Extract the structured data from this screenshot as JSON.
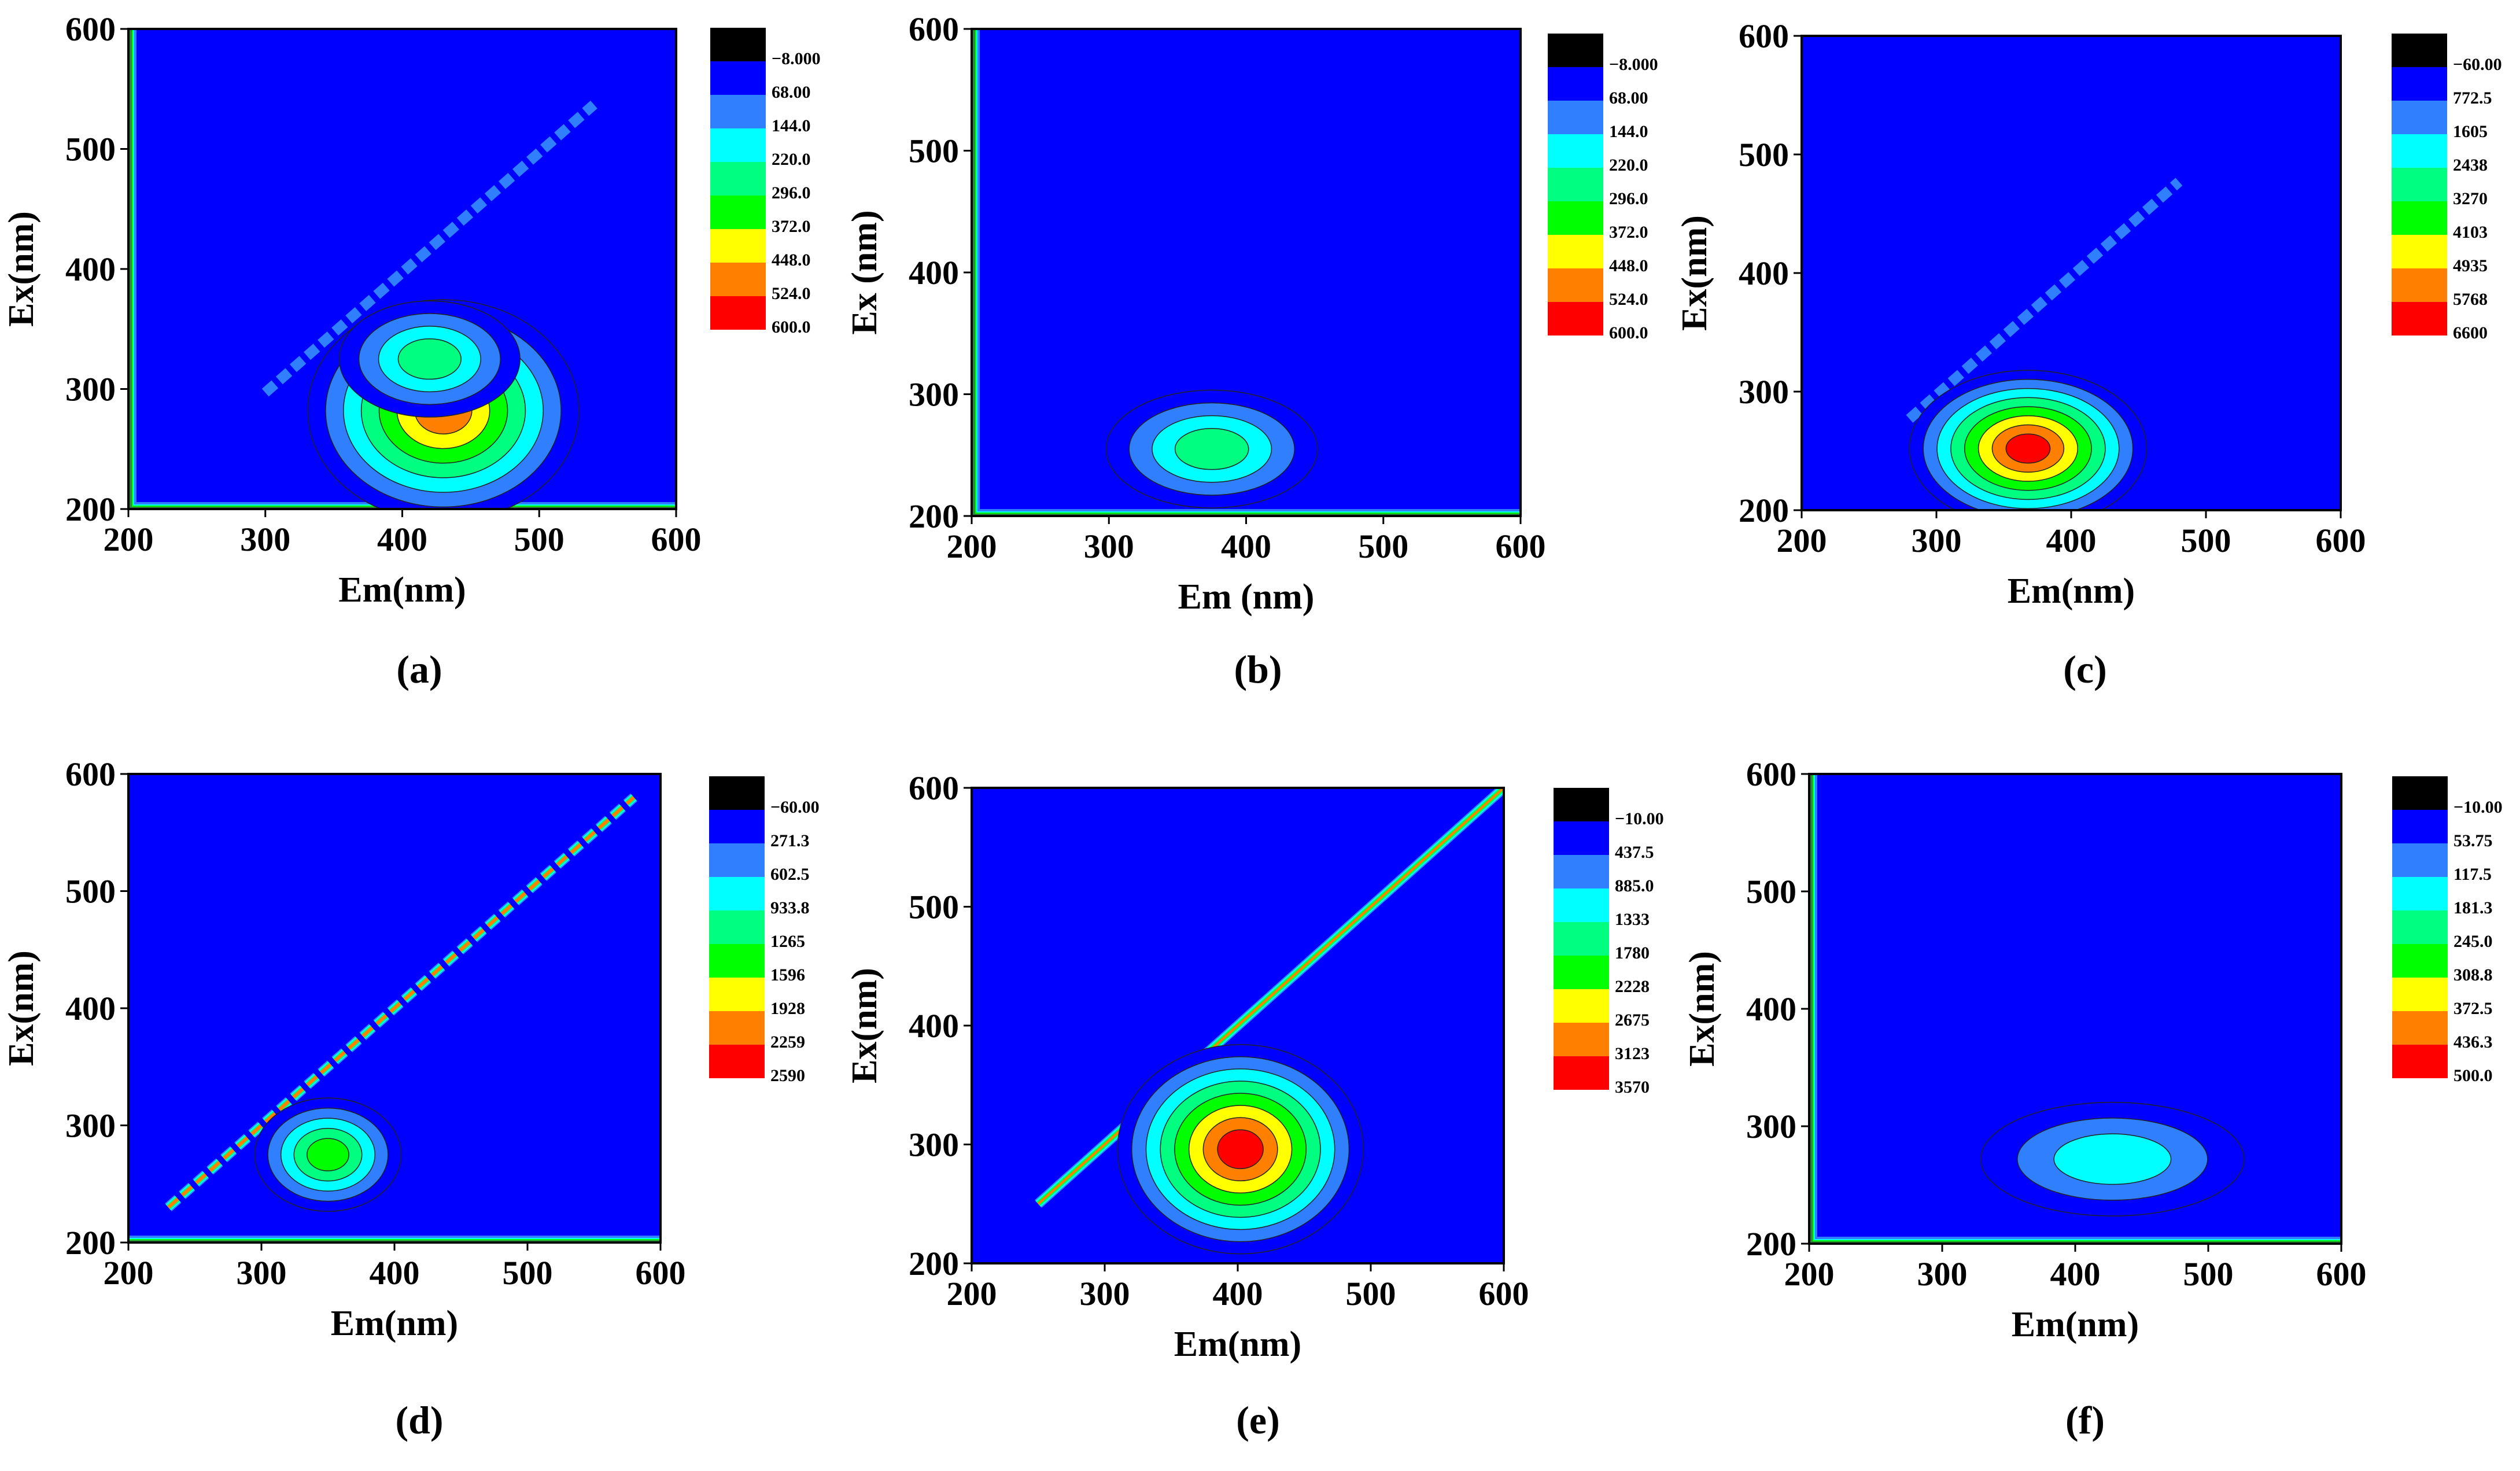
{
  "chart_data": [
    {
      "panel": "(a)",
      "type": "heatmap",
      "xlabel": "Em(nm)",
      "ylabel": "Ex(nm)",
      "xlim": [
        200,
        600
      ],
      "ylim": [
        200,
        600
      ],
      "xticks": [
        "200",
        "300",
        "400",
        "500",
        "600"
      ],
      "yticks": [
        "200",
        "300",
        "400",
        "500",
        "600"
      ],
      "legend_levels": [
        "−8.000",
        "68.00",
        "144.0",
        "220.0",
        "296.0",
        "372.0",
        "448.0",
        "524.0",
        "600.0"
      ],
      "peaks": [
        {
          "em": 430,
          "ex": 282,
          "levels": [
            1,
            2,
            3,
            4,
            5,
            6,
            7
          ],
          "sx": 45,
          "sy": 42
        },
        {
          "em": 420,
          "ex": 325,
          "levels": [
            1,
            2,
            3,
            4
          ],
          "sx": 30,
          "sy": 22
        }
      ],
      "scatter_band": {
        "from": [
          300,
          297
        ],
        "to": [
          540,
          537
        ],
        "levels": [
          1,
          2
        ]
      },
      "edge": "left-bottom"
    },
    {
      "panel": "(b)",
      "type": "heatmap",
      "xlabel": "Em (nm)",
      "ylabel": "Ex (nm)",
      "xlim": [
        200,
        600
      ],
      "ylim": [
        200,
        600
      ],
      "xticks": [
        "200",
        "300",
        "400",
        "500",
        "600"
      ],
      "yticks": [
        "200",
        "300",
        "400",
        "500",
        "600"
      ],
      "legend_levels": [
        "−8.000",
        "68.00",
        "144.0",
        "220.0",
        "296.0",
        "372.0",
        "448.0",
        "524.0",
        "600.0"
      ],
      "peaks": [
        {
          "em": 375,
          "ex": 255,
          "levels": [
            1,
            2,
            3,
            4
          ],
          "sx": 35,
          "sy": 22
        }
      ],
      "scatter_band": null,
      "edge": "left-bottom"
    },
    {
      "panel": "(c)",
      "type": "heatmap",
      "xlabel": "Em(nm)",
      "ylabel": "Ex(nm)",
      "xlim": [
        200,
        600
      ],
      "ylim": [
        200,
        600
      ],
      "xticks": [
        "200",
        "300",
        "400",
        "500",
        "600"
      ],
      "yticks": [
        "200",
        "300",
        "400",
        "500",
        "600"
      ],
      "legend_levels": [
        "−60.00",
        "772.5",
        "1605",
        "2438",
        "3270",
        "4103",
        "4935",
        "5768",
        "6600"
      ],
      "peaks": [
        {
          "em": 368,
          "ex": 252,
          "levels": [
            1,
            2,
            3,
            4,
            5,
            6,
            7,
            8
          ],
          "sx": 40,
          "sy": 30
        }
      ],
      "scatter_band": {
        "from": [
          280,
          277
        ],
        "to": [
          480,
          477
        ],
        "levels": [
          1,
          2
        ]
      },
      "edge": "none"
    },
    {
      "panel": "(d)",
      "type": "heatmap",
      "xlabel": "Em(nm)",
      "ylabel": "Ex(nm)",
      "xlim": [
        200,
        600
      ],
      "ylim": [
        200,
        600
      ],
      "xticks": [
        "200",
        "300",
        "400",
        "500",
        "600"
      ],
      "yticks": [
        "200",
        "300",
        "400",
        "500",
        "600"
      ],
      "legend_levels": [
        "−60.00",
        "271.3",
        "602.5",
        "933.8",
        "1265",
        "1596",
        "1928",
        "2259",
        "2590"
      ],
      "peaks": [
        {
          "em": 350,
          "ex": 275,
          "levels": [
            1,
            2,
            3,
            4,
            5
          ],
          "sx": 25,
          "sy": 22
        }
      ],
      "scatter_band": {
        "from": [
          230,
          230
        ],
        "to": [
          580,
          580
        ],
        "levels": [
          1,
          2,
          3,
          4,
          7
        ]
      },
      "edge": "bottom"
    },
    {
      "panel": "(e)",
      "type": "heatmap",
      "xlabel": "Em(nm)",
      "ylabel": "Ex(nm)",
      "xlim": [
        200,
        600
      ],
      "ylim": [
        200,
        600
      ],
      "xticks": [
        "200",
        "300",
        "400",
        "500",
        "600"
      ],
      "yticks": [
        "200",
        "300",
        "400",
        "500",
        "600"
      ],
      "legend_levels": [
        "−10.00",
        "437.5",
        "885.0",
        "1333",
        "1780",
        "2228",
        "2675",
        "3123",
        "3570"
      ],
      "peaks": [
        {
          "em": 402,
          "ex": 296,
          "levels": [
            1,
            2,
            3,
            4,
            5,
            6,
            7,
            8
          ],
          "sx": 42,
          "sy": 40
        }
      ],
      "scatter_band": {
        "from": [
          250,
          250
        ],
        "to": [
          600,
          600
        ],
        "levels": [
          1,
          2,
          3,
          4,
          5,
          6,
          7
        ]
      },
      "edge": "none"
    },
    {
      "panel": "(f)",
      "type": "heatmap",
      "xlabel": "Em(nm)",
      "ylabel": "Ex(nm)",
      "xlim": [
        200,
        600
      ],
      "ylim": [
        200,
        600
      ],
      "xticks": [
        "200",
        "300",
        "400",
        "500",
        "600"
      ],
      "yticks": [
        "200",
        "300",
        "400",
        "500",
        "600"
      ],
      "legend_levels": [
        "−10.00",
        "53.75",
        "117.5",
        "181.3",
        "245.0",
        "308.8",
        "372.5",
        "436.3",
        "500.0"
      ],
      "peaks": [
        {
          "em": 428,
          "ex": 272,
          "levels": [
            1,
            2,
            3
          ],
          "sx": 45,
          "sy": 22
        }
      ],
      "scatter_band": null,
      "edge": "left-bottom"
    }
  ],
  "colors": {
    "levels": [
      "#000000",
      "#0000ff",
      "#2f7fff",
      "#00ffff",
      "#00ff80",
      "#00ff00",
      "#ffff00",
      "#ff8000",
      "#ff0000"
    ]
  }
}
